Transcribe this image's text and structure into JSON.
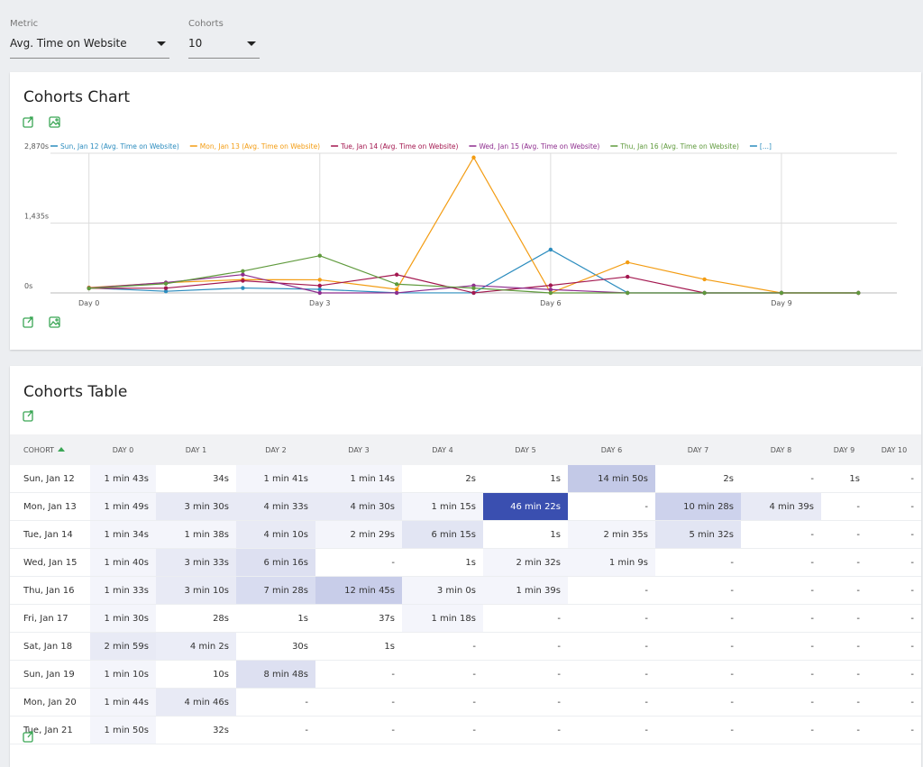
{
  "controls": {
    "metric_label": "Metric",
    "metric_value": "Avg. Time on Website",
    "cohorts_label": "Cohorts",
    "cohorts_value": "10"
  },
  "chart_card": {
    "title": "Cohorts Chart"
  },
  "chart_data": {
    "type": "line",
    "x": [
      0,
      1,
      2,
      3,
      4,
      5,
      6,
      7,
      8,
      9,
      10
    ],
    "xlim": [
      -0.5,
      10.5
    ],
    "xticks": [
      {
        "value": 0,
        "label": "Day 0"
      },
      {
        "value": 3,
        "label": "Day 3"
      },
      {
        "value": 6,
        "label": "Day 6"
      },
      {
        "value": 9,
        "label": "Day 9"
      }
    ],
    "ylim": [
      0,
      2870
    ],
    "yticks": [
      {
        "value": 0,
        "label": "0s"
      },
      {
        "value": 1435,
        "label": "1,435s"
      },
      {
        "value": 2870,
        "label": "2,870s"
      }
    ],
    "grid": true,
    "series": [
      {
        "name": "Sun, Jan 12 (Avg. Time on Website)",
        "color": "#2b8cbe",
        "values": [
          103,
          34,
          101,
          74,
          2,
          1,
          890,
          2,
          0,
          1,
          0
        ]
      },
      {
        "name": "Mon, Jan 13 (Avg. Time on Website)",
        "color": "#f39c12",
        "values": [
          109,
          210,
          273,
          270,
          75,
          2782,
          0,
          628,
          279,
          0,
          0
        ]
      },
      {
        "name": "Tue, Jan 14 (Avg. Time on Website)",
        "color": "#a3174f",
        "values": [
          94,
          98,
          250,
          149,
          375,
          1,
          155,
          332,
          0,
          0,
          0
        ]
      },
      {
        "name": "Wed, Jan 15 (Avg. Time on Website)",
        "color": "#8e2d8e",
        "values": [
          100,
          213,
          376,
          0,
          1,
          152,
          69,
          0,
          0,
          0,
          0
        ]
      },
      {
        "name": "Thu, Jan 16 (Avg. Time on Website)",
        "color": "#5f9a3c",
        "values": [
          93,
          190,
          448,
          765,
          180,
          99,
          0,
          0,
          0,
          0,
          0
        ]
      }
    ],
    "legend_more": "[...]",
    "legend_more_color": "#2b8cbe"
  },
  "table_card": {
    "title": "Cohorts Table",
    "columns": [
      "COHORT",
      "DAY 0",
      "DAY 1",
      "DAY 2",
      "DAY 3",
      "DAY 4",
      "DAY 5",
      "DAY 6",
      "DAY 7",
      "DAY 8",
      "DAY 9",
      "DAY 10"
    ],
    "rows": [
      {
        "cohort": "Sun, Jan 12",
        "cells": [
          "1 min 43s",
          "34s",
          "1 min 41s",
          "1 min 14s",
          "2s",
          "1s",
          "14 min 50s",
          "2s",
          "-",
          "1s",
          "-"
        ]
      },
      {
        "cohort": "Mon, Jan 13",
        "cells": [
          "1 min 49s",
          "3 min 30s",
          "4 min 33s",
          "4 min 30s",
          "1 min 15s",
          "46 min 22s",
          "-",
          "10 min 28s",
          "4 min 39s",
          "-",
          "-"
        ]
      },
      {
        "cohort": "Tue, Jan 14",
        "cells": [
          "1 min 34s",
          "1 min 38s",
          "4 min 10s",
          "2 min 29s",
          "6 min 15s",
          "1s",
          "2 min 35s",
          "5 min 32s",
          "-",
          "-",
          "-"
        ]
      },
      {
        "cohort": "Wed, Jan 15",
        "cells": [
          "1 min 40s",
          "3 min 33s",
          "6 min 16s",
          "-",
          "1s",
          "2 min 32s",
          "1 min 9s",
          "-",
          "-",
          "-",
          "-"
        ]
      },
      {
        "cohort": "Thu, Jan 16",
        "cells": [
          "1 min 33s",
          "3 min 10s",
          "7 min 28s",
          "12 min 45s",
          "3 min 0s",
          "1 min 39s",
          "-",
          "-",
          "-",
          "-",
          "-"
        ]
      },
      {
        "cohort": "Fri, Jan 17",
        "cells": [
          "1 min 30s",
          "28s",
          "1s",
          "37s",
          "1 min 18s",
          "-",
          "-",
          "-",
          "-",
          "-",
          "-"
        ]
      },
      {
        "cohort": "Sat, Jan 18",
        "cells": [
          "2 min 59s",
          "4 min 2s",
          "30s",
          "1s",
          "-",
          "-",
          "-",
          "-",
          "-",
          "-",
          "-"
        ]
      },
      {
        "cohort": "Sun, Jan 19",
        "cells": [
          "1 min 10s",
          "10s",
          "8 min 48s",
          "-",
          "-",
          "-",
          "-",
          "-",
          "-",
          "-",
          "-"
        ]
      },
      {
        "cohort": "Mon, Jan 20",
        "cells": [
          "1 min 44s",
          "4 min 46s",
          "-",
          "-",
          "-",
          "-",
          "-",
          "-",
          "-",
          "-",
          "-"
        ]
      },
      {
        "cohort": "Tue, Jan 21",
        "cells": [
          "1 min 50s",
          "32s",
          "-",
          "-",
          "-",
          "-",
          "-",
          "-",
          "-",
          "-",
          "-"
        ]
      }
    ],
    "cell_colors": [
      [
        "#f4f5fb",
        "#ffffff",
        "#f4f5fb",
        "#f4f5fb",
        "#ffffff",
        "#ffffff",
        "#c3c9e7",
        "#ffffff",
        "#ffffff",
        "#ffffff",
        "#ffffff"
      ],
      [
        "#f4f5fb",
        "#e8eaf5",
        "#e8eaf5",
        "#e8eaf5",
        "#f4f5fb",
        "#3a4fb0",
        "#ffffff",
        "#cdd2ec",
        "#e8eaf5",
        "#ffffff",
        "#ffffff"
      ],
      [
        "#f4f5fb",
        "#f4f5fb",
        "#e8eaf5",
        "#f4f5fb",
        "#e2e5f3",
        "#ffffff",
        "#f4f5fb",
        "#e2e5f3",
        "#ffffff",
        "#ffffff",
        "#ffffff"
      ],
      [
        "#f4f5fb",
        "#e8eaf5",
        "#dde0f1",
        "#ffffff",
        "#ffffff",
        "#f4f5fb",
        "#f4f5fb",
        "#ffffff",
        "#ffffff",
        "#ffffff",
        "#ffffff"
      ],
      [
        "#f4f5fb",
        "#e8eaf5",
        "#d8dcf0",
        "#c8cde9",
        "#f4f5fb",
        "#f4f5fb",
        "#ffffff",
        "#ffffff",
        "#ffffff",
        "#ffffff",
        "#ffffff"
      ],
      [
        "#f4f5fb",
        "#ffffff",
        "#ffffff",
        "#ffffff",
        "#f4f5fb",
        "#ffffff",
        "#ffffff",
        "#ffffff",
        "#ffffff",
        "#ffffff",
        "#ffffff"
      ],
      [
        "#e8eaf5",
        "#ebedf7",
        "#ffffff",
        "#ffffff",
        "#ffffff",
        "#ffffff",
        "#ffffff",
        "#ffffff",
        "#ffffff",
        "#ffffff",
        "#ffffff"
      ],
      [
        "#f4f5fb",
        "#ffffff",
        "#dde0f1",
        "#ffffff",
        "#ffffff",
        "#ffffff",
        "#ffffff",
        "#ffffff",
        "#ffffff",
        "#ffffff",
        "#ffffff"
      ],
      [
        "#f4f5fb",
        "#e8eaf5",
        "#ffffff",
        "#ffffff",
        "#ffffff",
        "#ffffff",
        "#ffffff",
        "#ffffff",
        "#ffffff",
        "#ffffff",
        "#ffffff"
      ],
      [
        "#f4f5fb",
        "#ffffff",
        "#ffffff",
        "#ffffff",
        "#ffffff",
        "#ffffff",
        "#ffffff",
        "#ffffff",
        "#ffffff",
        "#ffffff",
        "#ffffff"
      ]
    ],
    "highlight_text_color": "#ffffff"
  }
}
